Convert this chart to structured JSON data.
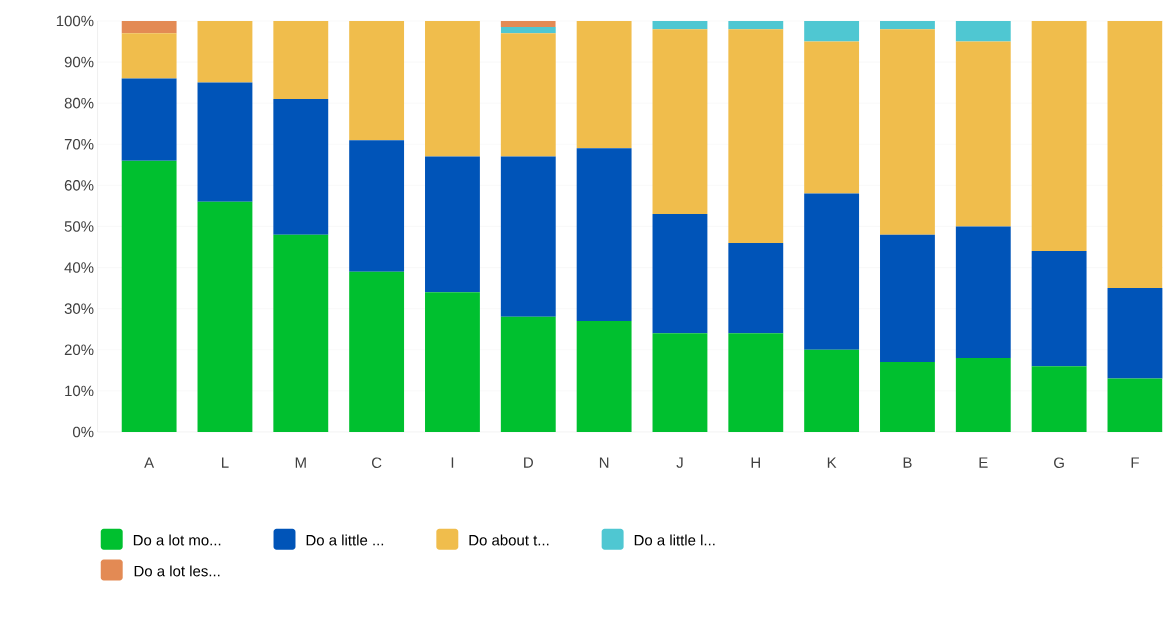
{
  "chart_data": {
    "type": "bar",
    "stacked": true,
    "categories": [
      "A",
      "L",
      "M",
      "C",
      "I",
      "D",
      "N",
      "J",
      "H",
      "K",
      "B",
      "E",
      "G",
      "F"
    ],
    "series": [
      {
        "name": "Do a lot mo...",
        "color": "#00c02f",
        "values": [
          66,
          56,
          48,
          39,
          34,
          28,
          27,
          24,
          24,
          20,
          17,
          18,
          16,
          13
        ]
      },
      {
        "name": "Do a little ...",
        "color": "#0054b8",
        "values": [
          20,
          29,
          33,
          32,
          33,
          39,
          42,
          29,
          22,
          38,
          31,
          32,
          28,
          22
        ]
      },
      {
        "name": "Do about t...",
        "color": "#f0bd4c",
        "values": [
          11,
          15,
          19,
          29,
          33,
          30,
          31,
          45,
          52,
          37,
          50,
          45,
          56,
          65
        ]
      },
      {
        "name": "Do a little l...",
        "color": "#4fc7d2",
        "values": [
          0,
          0,
          0,
          0,
          0,
          1.5,
          0,
          2,
          2,
          5,
          2,
          5,
          0,
          0
        ]
      },
      {
        "name": "Do a lot les...",
        "color": "#e38a54",
        "values": [
          3,
          0,
          0,
          0,
          0,
          1.5,
          0,
          0,
          0,
          0,
          0,
          0,
          0,
          0
        ]
      }
    ],
    "ylim": [
      0,
      100
    ],
    "yticks": [
      {
        "value": 0,
        "label": "0%"
      },
      {
        "value": 10,
        "label": "10%"
      },
      {
        "value": 20,
        "label": "20%"
      },
      {
        "value": 30,
        "label": "30%"
      },
      {
        "value": 40,
        "label": "40%"
      },
      {
        "value": 50,
        "label": "50%"
      },
      {
        "value": 60,
        "label": "60%"
      },
      {
        "value": 70,
        "label": "70%"
      },
      {
        "value": 80,
        "label": "80%"
      },
      {
        "value": 90,
        "label": "90%"
      },
      {
        "value": 100,
        "label": "100%"
      }
    ],
    "grid": "y",
    "legend": "bottom"
  }
}
